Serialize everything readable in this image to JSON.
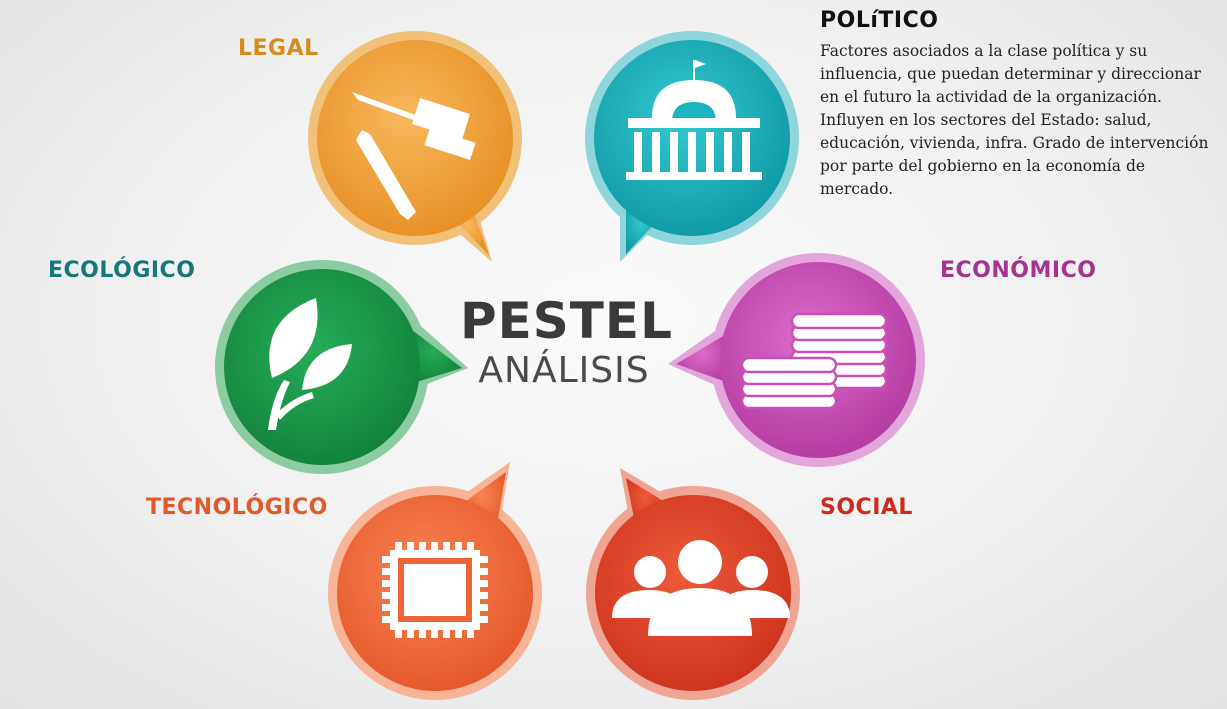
{
  "center": {
    "title": "PESTEL",
    "subtitle": "ANÁLISIS"
  },
  "factors": {
    "legal": {
      "label": "LEGAL",
      "color": "#d98a1c",
      "icon": "gavel-icon"
    },
    "politico": {
      "label": "POLíTICO",
      "color": "#111111",
      "icon": "capitol-building-icon",
      "description": "Factores asociados a la clase política y su influencia, que puedan determinar y direccionar en el futuro la actividad de la organización. Influyen en los sectores del Estado:  salud, educación, vivienda, infra. Grado de intervención por parte del gobierno en la economía de mercado."
    },
    "ecologico": {
      "label": "ECOLÓGICO",
      "color": "#16787a",
      "icon": "leaves-icon"
    },
    "economico": {
      "label": "ECONÓMICO",
      "color": "#a6338f",
      "icon": "coins-icon"
    },
    "tecnologico": {
      "label": "TECNOLÓGICO",
      "color": "#e2572b",
      "icon": "chip-icon"
    },
    "social": {
      "label": "SOCIAL",
      "color": "#cc2a1c",
      "icon": "people-icon"
    }
  },
  "bubble_colors": {
    "legal": "#f2a03a",
    "politico": "#1bb5bf",
    "ecologico": "#1a9a4a",
    "economico": "#c94fb8",
    "tecnologico": "#f06a3a",
    "social": "#e0452c"
  }
}
